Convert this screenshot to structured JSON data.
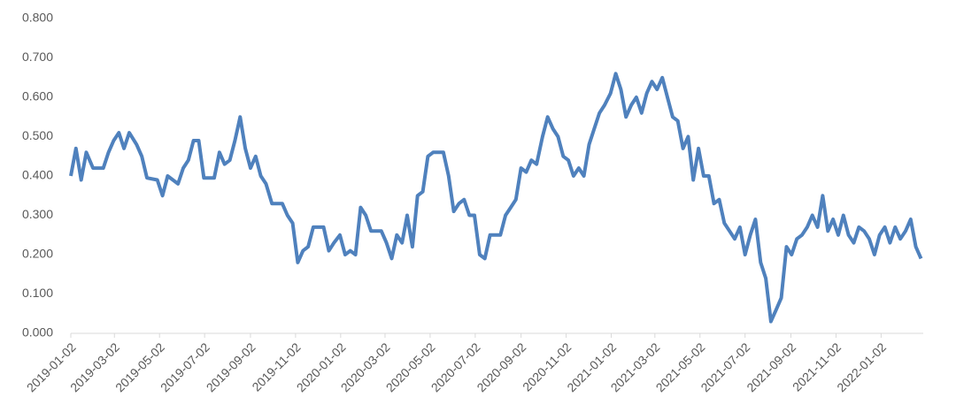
{
  "chart_data": {
    "type": "line",
    "color": "#4f81bd",
    "grid": false,
    "ylim": [
      0,
      0.8
    ],
    "yticks": [
      {
        "value": 0,
        "label": "0.000"
      },
      {
        "value": 0.1,
        "label": "0.100"
      },
      {
        "value": 0.2,
        "label": "0.200"
      },
      {
        "value": 0.3,
        "label": "0.300"
      },
      {
        "value": 0.4,
        "label": "0.400"
      },
      {
        "value": 0.5,
        "label": "0.500"
      },
      {
        "value": 0.6,
        "label": "0.600"
      },
      {
        "value": 0.7,
        "label": "0.700"
      },
      {
        "value": 0.8,
        "label": "0.800"
      }
    ],
    "xlim": [
      "2019-01-02",
      "2022-02-28"
    ],
    "xticks": [
      "2019-01-02",
      "2019-03-02",
      "2019-05-02",
      "2019-07-02",
      "2019-09-02",
      "2019-11-02",
      "2020-01-02",
      "2020-03-02",
      "2020-05-02",
      "2020-07-02",
      "2020-09-02",
      "2020-11-02",
      "2021-01-02",
      "2021-03-02",
      "2021-05-02",
      "2021-07-02",
      "2021-09-02",
      "2021-11-02",
      "2022-01-02"
    ],
    "x": [
      "2019-01-02",
      "2019-01-09",
      "2019-01-16",
      "2019-01-23",
      "2019-02-01",
      "2019-02-15",
      "2019-02-22",
      "2019-03-01",
      "2019-03-08",
      "2019-03-15",
      "2019-03-22",
      "2019-04-01",
      "2019-04-08",
      "2019-04-15",
      "2019-04-29",
      "2019-05-06",
      "2019-05-13",
      "2019-05-27",
      "2019-06-03",
      "2019-06-10",
      "2019-06-17",
      "2019-06-24",
      "2019-07-01",
      "2019-07-15",
      "2019-07-22",
      "2019-07-29",
      "2019-08-05",
      "2019-08-12",
      "2019-08-19",
      "2019-08-26",
      "2019-09-02",
      "2019-09-09",
      "2019-09-16",
      "2019-09-23",
      "2019-10-01",
      "2019-10-15",
      "2019-10-22",
      "2019-10-29",
      "2019-11-05",
      "2019-11-12",
      "2019-11-19",
      "2019-11-26",
      "2019-12-10",
      "2019-12-17",
      "2019-12-24",
      "2020-01-01",
      "2020-01-08",
      "2020-01-15",
      "2020-01-22",
      "2020-01-29",
      "2020-02-05",
      "2020-02-12",
      "2020-02-26",
      "2020-03-04",
      "2020-03-11",
      "2020-03-18",
      "2020-03-25",
      "2020-04-01",
      "2020-04-08",
      "2020-04-15",
      "2020-04-22",
      "2020-04-29",
      "2020-05-06",
      "2020-05-20",
      "2020-05-27",
      "2020-06-03",
      "2020-06-10",
      "2020-06-17",
      "2020-06-24",
      "2020-07-01",
      "2020-07-08",
      "2020-07-15",
      "2020-07-22",
      "2020-08-05",
      "2020-08-12",
      "2020-08-19",
      "2020-08-26",
      "2020-09-02",
      "2020-09-09",
      "2020-09-16",
      "2020-09-23",
      "2020-10-01",
      "2020-10-08",
      "2020-10-15",
      "2020-10-22",
      "2020-10-29",
      "2020-11-05",
      "2020-11-12",
      "2020-11-19",
      "2020-11-26",
      "2020-12-03",
      "2020-12-10",
      "2020-12-17",
      "2020-12-24",
      "2021-01-01",
      "2021-01-08",
      "2021-01-15",
      "2021-01-22",
      "2021-01-29",
      "2021-02-05",
      "2021-02-12",
      "2021-02-19",
      "2021-02-26",
      "2021-03-05",
      "2021-03-12",
      "2021-03-19",
      "2021-03-26",
      "2021-04-02",
      "2021-04-09",
      "2021-04-16",
      "2021-04-23",
      "2021-04-30",
      "2021-05-07",
      "2021-05-14",
      "2021-05-21",
      "2021-05-28",
      "2021-06-04",
      "2021-06-11",
      "2021-06-18",
      "2021-06-25",
      "2021-07-02",
      "2021-07-09",
      "2021-07-16",
      "2021-07-23",
      "2021-07-30",
      "2021-08-06",
      "2021-08-13",
      "2021-08-20",
      "2021-08-27",
      "2021-09-03",
      "2021-09-10",
      "2021-09-17",
      "2021-09-24",
      "2021-10-01",
      "2021-10-08",
      "2021-10-15",
      "2021-10-22",
      "2021-10-29",
      "2021-11-05",
      "2021-11-12",
      "2021-11-19",
      "2021-11-26",
      "2021-12-03",
      "2021-12-10",
      "2021-12-17",
      "2021-12-24",
      "2021-12-31",
      "2022-01-07",
      "2022-01-14",
      "2022-01-21",
      "2022-01-28",
      "2022-02-04",
      "2022-02-11",
      "2022-02-18",
      "2022-02-25"
    ],
    "values": [
      0.4,
      0.47,
      0.39,
      0.46,
      0.42,
      0.42,
      0.46,
      0.49,
      0.51,
      0.47,
      0.51,
      0.48,
      0.45,
      0.395,
      0.39,
      0.35,
      0.4,
      0.38,
      0.42,
      0.44,
      0.49,
      0.49,
      0.395,
      0.395,
      0.46,
      0.43,
      0.44,
      0.49,
      0.55,
      0.47,
      0.42,
      0.45,
      0.4,
      0.38,
      0.33,
      0.33,
      0.3,
      0.28,
      0.18,
      0.21,
      0.22,
      0.27,
      0.27,
      0.21,
      0.23,
      0.25,
      0.2,
      0.21,
      0.2,
      0.32,
      0.3,
      0.26,
      0.26,
      0.23,
      0.19,
      0.25,
      0.23,
      0.3,
      0.22,
      0.35,
      0.36,
      0.45,
      0.46,
      0.46,
      0.4,
      0.31,
      0.33,
      0.34,
      0.3,
      0.3,
      0.2,
      0.19,
      0.25,
      0.25,
      0.3,
      0.32,
      0.34,
      0.42,
      0.41,
      0.44,
      0.43,
      0.5,
      0.55,
      0.52,
      0.5,
      0.45,
      0.44,
      0.4,
      0.42,
      0.4,
      0.48,
      0.52,
      0.56,
      0.58,
      0.61,
      0.66,
      0.62,
      0.55,
      0.58,
      0.6,
      0.56,
      0.61,
      0.64,
      0.62,
      0.65,
      0.6,
      0.55,
      0.54,
      0.47,
      0.5,
      0.39,
      0.47,
      0.4,
      0.4,
      0.33,
      0.34,
      0.28,
      0.26,
      0.24,
      0.27,
      0.2,
      0.25,
      0.29,
      0.18,
      0.14,
      0.03,
      0.06,
      0.09,
      0.22,
      0.2,
      0.24,
      0.25,
      0.27,
      0.3,
      0.27,
      0.35,
      0.26,
      0.29,
      0.25,
      0.3,
      0.25,
      0.23,
      0.27,
      0.26,
      0.24,
      0.2,
      0.25,
      0.27,
      0.23,
      0.27,
      0.24,
      0.26,
      0.29,
      0.22,
      0.19
    ]
  }
}
